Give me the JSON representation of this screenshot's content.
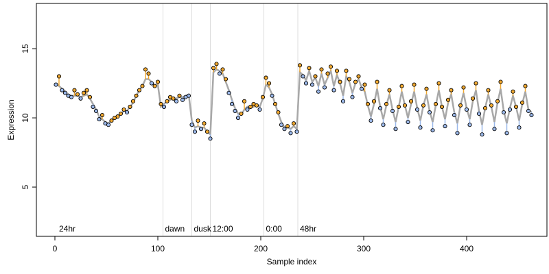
{
  "chart_data": {
    "type": "scatter",
    "xlabel": "Sample index",
    "ylabel": "Expression",
    "xlim": [
      -18,
      478
    ],
    "ylim": [
      1.44,
      18.27
    ],
    "xticks": [
      0,
      100,
      200,
      300,
      400
    ],
    "yticks": [
      5,
      10,
      15
    ],
    "x": [
      1,
      4,
      7,
      10,
      13,
      16,
      19,
      22,
      25,
      28,
      31,
      34,
      37,
      40,
      43,
      46,
      49,
      52,
      55,
      58,
      61,
      64,
      67,
      70,
      73,
      76,
      79,
      82,
      85,
      88,
      91,
      94,
      97,
      100,
      103,
      106,
      109,
      112,
      115,
      118,
      121,
      124,
      127,
      130,
      133,
      136,
      139,
      142,
      145,
      148,
      151,
      154,
      157,
      160,
      163,
      166,
      169,
      172,
      175,
      178,
      181,
      184,
      187,
      190,
      193,
      196,
      199,
      202,
      205,
      208,
      211,
      214,
      217,
      220,
      223,
      226,
      229,
      232,
      235,
      238,
      241,
      244,
      247,
      250,
      253,
      256,
      259,
      262,
      265,
      268,
      271,
      274,
      277,
      280,
      283,
      286,
      289,
      292,
      295,
      298,
      301,
      304,
      307,
      310,
      313,
      316,
      319,
      322,
      325,
      328,
      331,
      334,
      337,
      340,
      343,
      346,
      349,
      352,
      355,
      358,
      361,
      364,
      367,
      370,
      373,
      376,
      379,
      382,
      385,
      388,
      391,
      394,
      397,
      400,
      403,
      406,
      409,
      412,
      415,
      418,
      421,
      424,
      427,
      430,
      433,
      436,
      439,
      442,
      445,
      448,
      451,
      454,
      457,
      460,
      463
    ],
    "series": [
      {
        "above_color": "#f0a830",
        "below_color": "#9bb8ea",
        "values": [
          12.4,
          13.0,
          12.0,
          11.8,
          11.6,
          11.5,
          12.0,
          11.7,
          11.4,
          11.8,
          12.0,
          11.5,
          10.8,
          10.5,
          9.9,
          10.2,
          9.6,
          9.5,
          9.8,
          10.0,
          10.1,
          10.3,
          10.6,
          10.4,
          10.8,
          11.2,
          11.6,
          12.0,
          12.3,
          13.5,
          13.2,
          12.5,
          12.3,
          12.6,
          11.0,
          10.8,
          11.2,
          11.5,
          11.4,
          11.2,
          11.6,
          11.3,
          11.5,
          11.6,
          9.5,
          9.0,
          9.8,
          9.2,
          9.6,
          9.0,
          8.5,
          13.6,
          13.9,
          13.2,
          13.5,
          12.8,
          11.8,
          11.0,
          10.5,
          10.0,
          10.3,
          11.2,
          10.6,
          10.8,
          11.0,
          10.9,
          10.6,
          11.5,
          12.9,
          12.5,
          11.6,
          11.0,
          10.4,
          9.5,
          9.2,
          9.4,
          8.9,
          9.6,
          9.0,
          13.8,
          13.0,
          12.5,
          13.6,
          12.4,
          13.0,
          11.9,
          13.5,
          12.2,
          13.2,
          13.7,
          12.0,
          13.4,
          12.6,
          11.2,
          13.4,
          12.8,
          11.5,
          12.6,
          13.0,
          12.1,
          12.4,
          11.0,
          9.8,
          11.2,
          12.6,
          10.7,
          9.5,
          11.0,
          12.0,
          10.5,
          9.2,
          10.8,
          12.3,
          10.9,
          9.7,
          11.2,
          12.4,
          10.6,
          9.3,
          10.9,
          12.1,
          10.4,
          9.1,
          11.0,
          12.5,
          10.8,
          9.4,
          11.3,
          12.0,
          10.2,
          8.9,
          10.9,
          12.2,
          10.6,
          9.5,
          11.4,
          12.5,
          10.3,
          8.8,
          10.7,
          12.0,
          10.9,
          9.2,
          11.2,
          12.6,
          10.4,
          8.9,
          10.6,
          11.9,
          10.8,
          9.3,
          11.1,
          12.3,
          10.5,
          10.2
        ]
      },
      {
        "color": "#a8a8a8",
        "values": [
          12.5,
          12.3,
          12.1,
          11.9,
          11.7,
          11.6,
          11.6,
          11.6,
          11.5,
          11.6,
          11.7,
          11.4,
          11.0,
          10.6,
          10.1,
          9.9,
          9.7,
          9.6,
          9.8,
          10.0,
          10.1,
          10.3,
          10.5,
          10.5,
          10.8,
          11.1,
          11.6,
          12.0,
          12.3,
          12.8,
          12.8,
          12.6,
          12.3,
          12.4,
          10.8,
          11.0,
          11.2,
          11.3,
          11.4,
          11.4,
          11.5,
          11.5,
          11.6,
          11.7,
          9.8,
          9.3,
          9.4,
          9.3,
          9.3,
          9.0,
          8.8,
          13.3,
          13.5,
          13.4,
          13.2,
          12.6,
          12.0,
          11.3,
          10.7,
          10.3,
          10.2,
          10.6,
          10.8,
          10.7,
          10.8,
          10.9,
          10.8,
          11.4,
          12.4,
          12.2,
          11.7,
          11.0,
          10.3,
          9.7,
          9.3,
          9.3,
          9.2,
          9.4,
          9.2,
          13.3,
          13.1,
          12.7,
          13.4,
          12.6,
          12.9,
          12.3,
          13.2,
          12.4,
          12.9,
          13.4,
          12.3,
          13.1,
          12.5,
          11.6,
          13.0,
          12.6,
          11.8,
          12.5,
          12.8,
          12.2,
          11.9,
          10.9,
          10.1,
          11.0,
          12.1,
          10.8,
          9.9,
          10.9,
          11.7,
          10.6,
          9.7,
          10.8,
          11.9,
          10.9,
          10.0,
          11.0,
          11.9,
          10.7,
          9.8,
          10.9,
          11.7,
          10.5,
          9.7,
          10.9,
          12.0,
          10.8,
          9.9,
          11.1,
          11.7,
          10.4,
          9.6,
          10.9,
          11.8,
          10.7,
          9.9,
          11.2,
          12.0,
          10.5,
          9.5,
          10.7,
          11.7,
          10.8,
          9.7,
          11.1,
          12.1,
          10.5,
          9.6,
          10.7,
          11.6,
          10.8,
          9.8,
          11.0,
          11.9,
          10.6,
          10.4
        ]
      }
    ],
    "vlines": [
      105,
      133,
      151,
      203,
      236
    ],
    "vline_color": "#dddddd",
    "annotations": [
      {
        "x": 2,
        "label": "24hr"
      },
      {
        "x": 105,
        "label": "dawn"
      },
      {
        "x": 133,
        "label": "dusk"
      },
      {
        "x": 151,
        "label": "12:00"
      },
      {
        "x": 203,
        "label": "0:00"
      },
      {
        "x": 236,
        "label": "48hr"
      }
    ],
    "annotation_color": "#aaaaaa"
  }
}
